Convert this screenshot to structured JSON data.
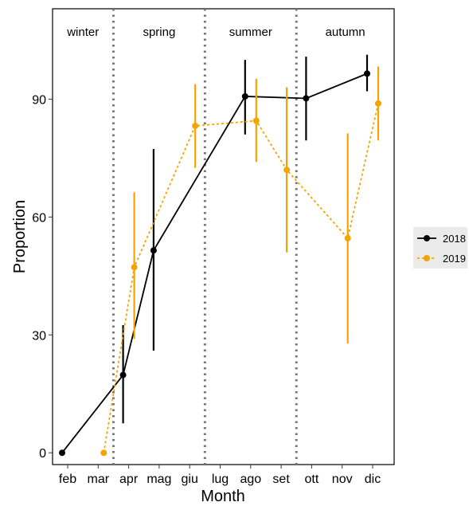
{
  "chart_data": {
    "type": "line",
    "xlabel": "Month",
    "ylabel": "Proportion",
    "categories": [
      "feb",
      "mar",
      "apr",
      "mag",
      "giu",
      "lug",
      "ago",
      "set",
      "ott",
      "nov",
      "dic"
    ],
    "ylim": [
      -3,
      113
    ],
    "yticks": [
      0,
      30,
      60,
      90
    ],
    "grid": false,
    "legend_position": "right",
    "season_labels": [
      "winter",
      "spring",
      "summer",
      "autumn"
    ],
    "season_dividers_after": [
      "mar",
      "giu",
      "set"
    ],
    "series": [
      {
        "name": "2018",
        "color": "#000000",
        "dash": "solid",
        "points": [
          {
            "x": "feb",
            "y": 0,
            "lo": 0,
            "hi": 0
          },
          {
            "x": "apr",
            "y": 19.8,
            "lo": 7.5,
            "hi": 32.5
          },
          {
            "x": "mag",
            "y": 51.5,
            "lo": 26,
            "hi": 77.3
          },
          {
            "x": "ago",
            "y": 90.7,
            "lo": 81,
            "hi": 100
          },
          {
            "x": "ott",
            "y": 90.2,
            "lo": 79.5,
            "hi": 100.8
          },
          {
            "x": "dic",
            "y": 96.5,
            "lo": 92,
            "hi": 101.3
          }
        ]
      },
      {
        "name": "2019",
        "color": "#F5A300",
        "dash": "dotted",
        "points": [
          {
            "x": "mar",
            "y": 0,
            "lo": 0,
            "hi": 0
          },
          {
            "x": "apr",
            "y": 47.2,
            "lo": 29,
            "hi": 66.3
          },
          {
            "x": "giu",
            "y": 83.2,
            "lo": 72.5,
            "hi": 93.8
          },
          {
            "x": "ago",
            "y": 84.5,
            "lo": 74,
            "hi": 95.2
          },
          {
            "x": "set",
            "y": 72,
            "lo": 51,
            "hi": 93
          },
          {
            "x": "nov",
            "y": 54.6,
            "lo": 27.8,
            "hi": 81.3
          },
          {
            "x": "dic",
            "y": 88.9,
            "lo": 79.5,
            "hi": 98.3
          }
        ]
      }
    ]
  }
}
